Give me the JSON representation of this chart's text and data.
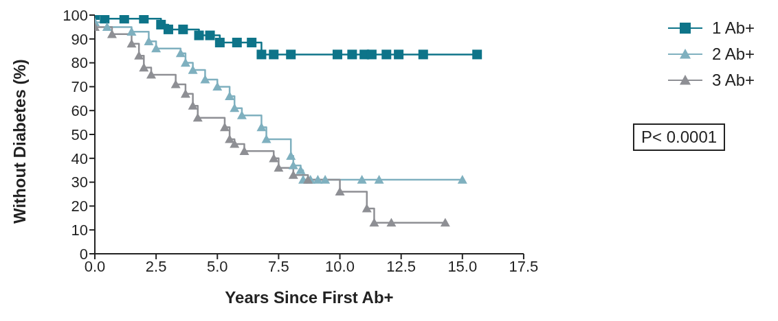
{
  "chart_data": {
    "type": "step",
    "xlabel": "Years Since First Ab+",
    "ylabel": "Without Diabetes (%)",
    "xlim": [
      0,
      17.5
    ],
    "ylim": [
      0,
      100
    ],
    "xticks": [
      {
        "value": 0,
        "label": "0.0"
      },
      {
        "value": 2.5,
        "label": "2.5"
      },
      {
        "value": 5,
        "label": "5.0"
      },
      {
        "value": 7.5,
        "label": "7.5"
      },
      {
        "value": 10,
        "label": "10.0"
      },
      {
        "value": 12.5,
        "label": "12.5"
      },
      {
        "value": 15,
        "label": "15.0"
      },
      {
        "value": 17.5,
        "label": "17.5"
      }
    ],
    "yticks": [
      0,
      10,
      20,
      30,
      40,
      50,
      60,
      70,
      80,
      90,
      100
    ],
    "grid": false,
    "legend": "right",
    "annotations": [
      "P< 0.0001"
    ],
    "series": [
      {
        "name": "1 Ab+",
        "color": "#0e7489",
        "marker": "square",
        "x": [
          0,
          0.4,
          1.2,
          2.0,
          2.7,
          3.0,
          3.6,
          4.25,
          4.7,
          5.1,
          5.8,
          6.4,
          6.8,
          7.3,
          8.0,
          9.9,
          10.5,
          11.0,
          11.3,
          11.9,
          12.4,
          13.4,
          15.6
        ],
        "values": [
          100,
          98.5,
          98.5,
          98.5,
          96,
          94,
          94,
          91.5,
          91.5,
          88.5,
          88.5,
          88.5,
          83.5,
          83.5,
          83.5,
          83.5,
          83.5,
          83.5,
          83.5,
          83.5,
          83.5,
          83.5,
          83.5
        ]
      },
      {
        "name": "2 Ab+",
        "color": "#7fb0bf",
        "marker": "triangle",
        "x": [
          0,
          0.5,
          1.5,
          2.2,
          2.5,
          3.5,
          3.7,
          4.0,
          4.5,
          5.0,
          5.5,
          5.7,
          6.0,
          6.8,
          7.0,
          8.0,
          8.1,
          8.4,
          8.5,
          8.8,
          9.1,
          9.4,
          10.9,
          11.6,
          15.0
        ],
        "values": [
          97,
          95,
          93,
          89,
          86,
          84,
          80,
          77,
          73,
          70,
          66,
          61,
          58,
          53,
          48,
          41,
          37,
          35,
          31,
          31,
          31,
          31,
          31,
          31,
          31
        ]
      },
      {
        "name": "3 Ab+",
        "color": "#8e8f94",
        "marker": "triangle",
        "x": [
          0,
          0.7,
          1.5,
          1.8,
          2.0,
          2.3,
          3.3,
          3.7,
          4.0,
          4.2,
          5.3,
          5.5,
          5.7,
          6.1,
          7.3,
          7.5,
          8.1,
          8.7,
          10.0,
          11.1,
          11.4,
          12.1,
          14.3
        ],
        "values": [
          95,
          92,
          88,
          83,
          78,
          75,
          71,
          67,
          62,
          57,
          53,
          48,
          46,
          43,
          40,
          36,
          33,
          31,
          26,
          19,
          13,
          13,
          13
        ]
      }
    ]
  }
}
